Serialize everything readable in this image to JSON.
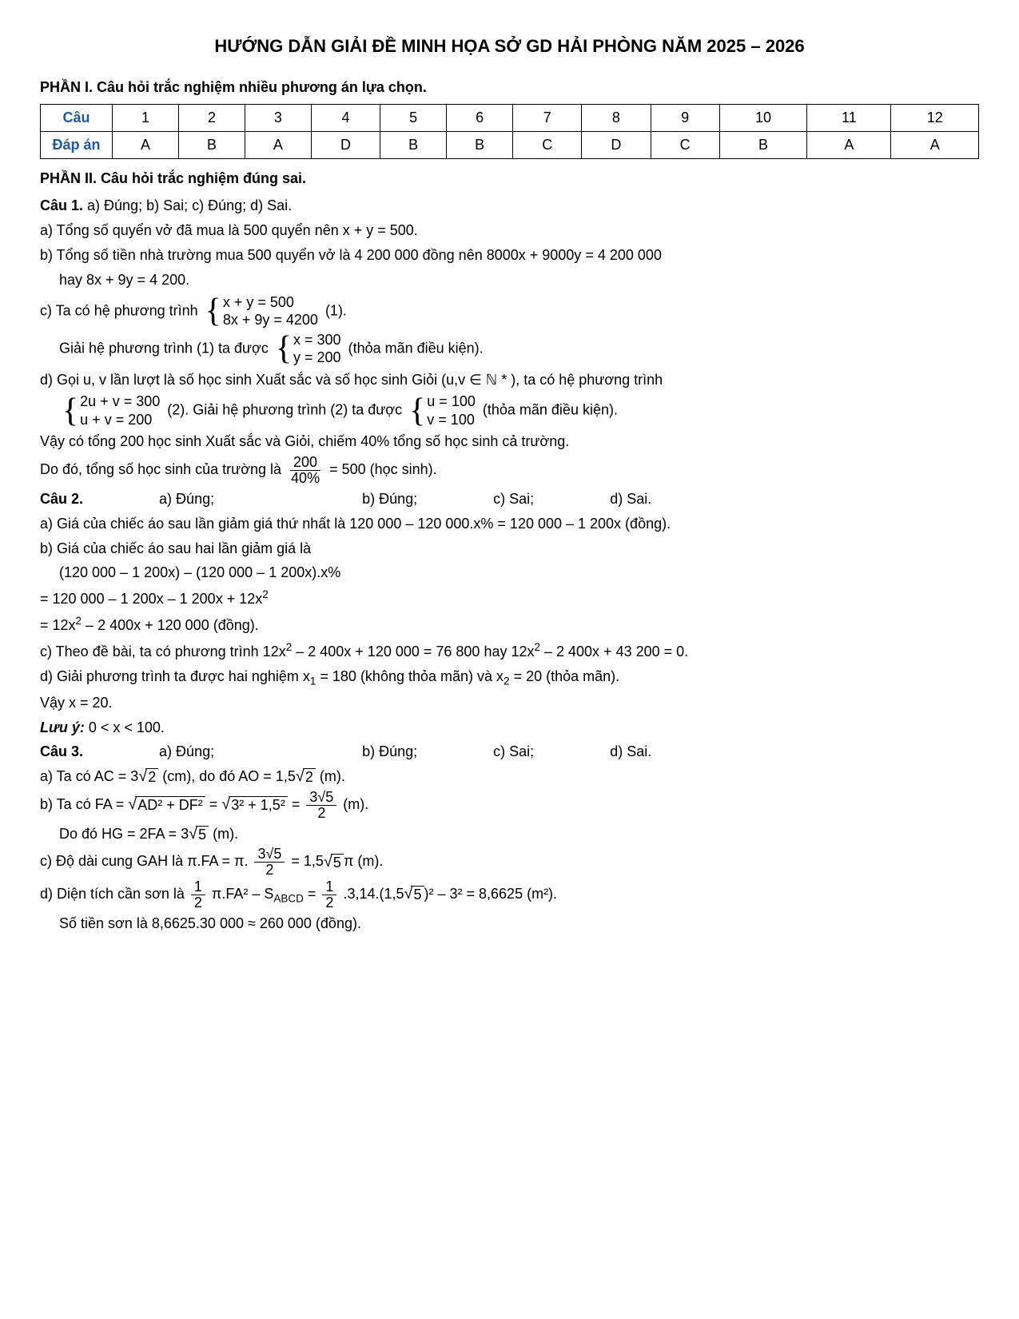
{
  "title": "HƯỚNG DẪN GIẢI ĐỀ MINH HỌA SỞ GD HẢI PHÒNG NĂM 2025 – 2026",
  "part1": {
    "heading": "PHẦN I. Câu hỏi trắc nghiệm nhiều phương án lựa chọn.",
    "rowhead_q": "Câu",
    "rowhead_a": "Đáp án",
    "nums": [
      "1",
      "2",
      "3",
      "4",
      "5",
      "6",
      "7",
      "8",
      "9",
      "10",
      "11",
      "12"
    ],
    "ans": [
      "A",
      "B",
      "A",
      "D",
      "B",
      "B",
      "C",
      "D",
      "C",
      "B",
      "A",
      "A"
    ]
  },
  "part2": {
    "heading": "PHẦN II. Câu hỏi trắc nghiệm đúng sai.",
    "q1": {
      "head": "Câu 1.",
      "summary": " a) Đúng;  b) Sai;  c) Đúng;  d) Sai.",
      "a": "a) Tổng số quyển vở đã mua là 500 quyển nên x + y = 500.",
      "b": "b) Tổng số tiền nhà trường mua 500 quyển vở là 4 200 000 đồng nên 8000x + 9000y = 4 200 000",
      "b2": "hay 8x + 9y = 4 200.",
      "c_pre": "c) Ta có hệ phương trình",
      "c_eq1": "x + y = 500",
      "c_eq2": "8x + 9y = 4200",
      "c_post": "(1).",
      "c2_pre": "Giải hệ phương trình (1) ta được",
      "c2_eq1": "x = 300",
      "c2_eq2": "y = 200",
      "c2_post": "(thỏa mãn điều kiện).",
      "d": "d) Gọi u, v lần lượt là số học sinh Xuất sắc và số học sinh Giỏi (u,v ∈ ℕ * ), ta có hệ phương trình",
      "d_eq1": "2u + v = 300",
      "d_eq2": "u + v = 200",
      "d_mid": "(2). Giải hệ phương trình (2) ta được",
      "d_eq3": "u = 100",
      "d_eq4": "v = 100",
      "d_post": "(thỏa mãn điều kiện).",
      "d2": "Vậy có tổng 200 học sinh Xuất sắc và Giỏi, chiếm 40% tổng số học sinh cả trường.",
      "d3_pre": "Do đó, tổng số học sinh của trường là",
      "d3_num": "200",
      "d3_den": "40%",
      "d3_post": "= 500  (học sinh)."
    },
    "q2": {
      "head": "Câu 2.",
      "oa": "a) Đúng;",
      "ob": "b) Đúng;",
      "oc": "c) Sai;",
      "od": "d) Sai.",
      "a": "a) Giá của chiếc áo sau lần giảm giá thứ nhất là 120 000 – 120 000.x% = 120 000 – 1 200x (đồng).",
      "b": "b) Giá của chiếc áo sau hai lần giảm giá là",
      "b2": "(120 000 – 1 200x) – (120 000 – 1 200x).x%",
      "b3": "= 120 000 – 1 200x – 1 200x + 12x",
      "b4": "= 12x",
      "b4b": " – 2 400x + 120 000 (đồng).",
      "c": "c) Theo đề bài, ta có phương trình 12x",
      "c_b": " – 2 400x + 120 000 = 76 800 hay 12x",
      "c_c": " – 2 400x + 43 200 = 0.",
      "d": "d) Giải phương trình ta được hai nghiệm x",
      "d_b": " = 180 (không thỏa mãn) và x",
      "d_c": " = 20 (thỏa mãn).",
      "d2": "Vậy x = 20.",
      "note": "Lưu ý:",
      "note2": " 0 < x < 100."
    },
    "q3": {
      "head": "Câu 3.",
      "oa": "a) Đúng;",
      "ob": "b) Đúng;",
      "oc": "c) Sai;",
      "od": "d) Sai.",
      "a_pre": "a) Ta có AC = 3",
      "a_r1": "2",
      "a_mid": "  (cm), do đó AO = 1,5",
      "a_r2": "2",
      "a_post": "  (m).",
      "b_pre": "b) Ta có FA =",
      "b_r1": "AD² + DF²",
      "b_eq": " =",
      "b_r2": "3² + 1,5²",
      "b_eq2": " =",
      "b_num": "3√5",
      "b_den": "2",
      "b_post": " (m).",
      "b2_pre": "Do đó HG = 2FA = 3",
      "b2_r": "5",
      "b2_post": "  (m).",
      "c_pre": "c) Độ dài cung GAH là  π.FA = π.",
      "c_num": "3√5",
      "c_den": "2",
      "c_mid": " = 1,5",
      "c_r": "5",
      "c_post": "π  (m).",
      "d_pre": "d) Diện tích cần sơn là ",
      "d_f1n": "1",
      "d_f1d": "2",
      "d_mid1": "π.FA² – S",
      "d_sub": "ABCD",
      "d_mid2": " = ",
      "d_f2n": "1",
      "d_f2d": "2",
      "d_mid3": ".3,14.(1,5",
      "d_r": "5",
      "d_mid4": ")² – 3² = 8,6625  (m²).",
      "d2": "Số tiền sơn là 8,6625.30 000 ≈ 260 000 (đồng)."
    }
  }
}
